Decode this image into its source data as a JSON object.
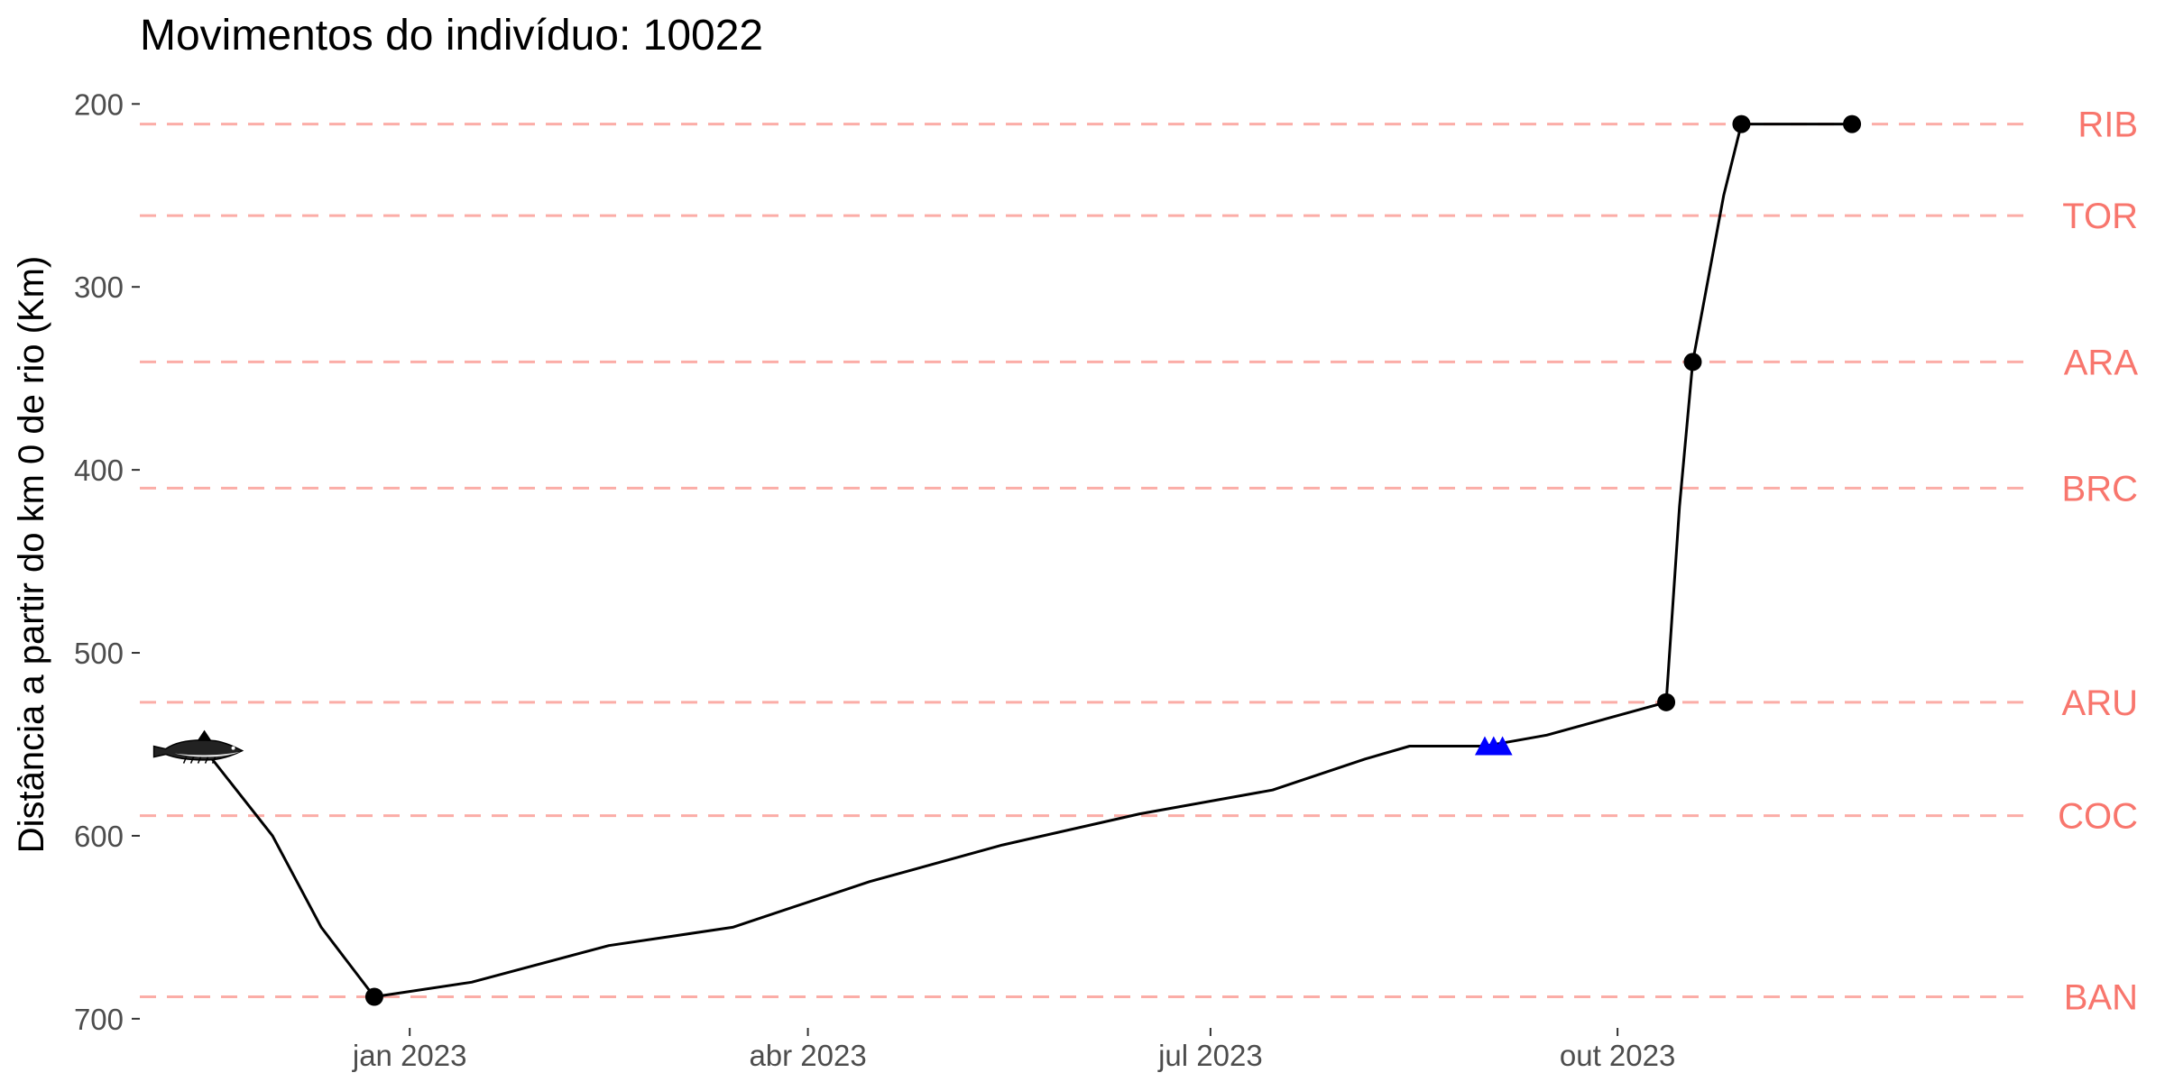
{
  "chart_data": {
    "type": "line",
    "title": "Movimentos do indivíduo: 10022",
    "xlabel": "",
    "ylabel": "Distância a partir do km 0 de rio (Km)",
    "x_axis": {
      "type": "date",
      "range": [
        "2022-11-01",
        "2023-12-25"
      ],
      "ticks": [
        {
          "date": "2023-01-01",
          "label": "jan 2023"
        },
        {
          "date": "2023-04-01",
          "label": "abr 2023"
        },
        {
          "date": "2023-07-01",
          "label": "jul 2023"
        },
        {
          "date": "2023-10-01",
          "label": "out 2023"
        }
      ]
    },
    "y_axis": {
      "reversed": true,
      "range": [
        190,
        705
      ],
      "ticks": [
        200,
        300,
        400,
        500,
        600,
        700
      ]
    },
    "grid": false,
    "reference_lines": {
      "color": "#F8766D",
      "style": "dashed",
      "items": [
        {
          "name": "RIB",
          "y": 211
        },
        {
          "name": "TOR",
          "y": 261
        },
        {
          "name": "ARA",
          "y": 341
        },
        {
          "name": "BRC",
          "y": 410
        },
        {
          "name": "ARU",
          "y": 527
        },
        {
          "name": "COC",
          "y": 589
        },
        {
          "name": "BAN",
          "y": 688
        }
      ]
    },
    "series": [
      {
        "type": "line",
        "color": "#000000",
        "points": [
          {
            "x": "2022-11-16",
            "y": 554
          },
          {
            "x": "2022-12-01",
            "y": 600
          },
          {
            "x": "2022-12-12",
            "y": 650
          },
          {
            "x": "2022-12-24",
            "y": 688
          },
          {
            "x": "2023-01-15",
            "y": 680
          },
          {
            "x": "2023-02-15",
            "y": 660
          },
          {
            "x": "2023-03-15",
            "y": 650
          },
          {
            "x": "2023-04-15",
            "y": 625
          },
          {
            "x": "2023-05-15",
            "y": 605
          },
          {
            "x": "2023-06-15",
            "y": 588
          },
          {
            "x": "2023-07-15",
            "y": 575
          },
          {
            "x": "2023-08-05",
            "y": 558
          },
          {
            "x": "2023-08-15",
            "y": 551
          },
          {
            "x": "2023-09-01",
            "y": 551
          },
          {
            "x": "2023-09-15",
            "y": 545
          },
          {
            "x": "2023-10-12",
            "y": 527
          },
          {
            "x": "2023-10-15",
            "y": 420
          },
          {
            "x": "2023-10-18",
            "y": 341
          },
          {
            "x": "2023-10-25",
            "y": 250
          },
          {
            "x": "2023-10-29",
            "y": 211
          },
          {
            "x": "2023-11-23",
            "y": 211
          }
        ]
      },
      {
        "type": "scatter",
        "name": "detections",
        "color": "#000000",
        "marker": "circle",
        "points": [
          {
            "x": "2022-12-24",
            "y": 688
          },
          {
            "x": "2023-10-12",
            "y": 527
          },
          {
            "x": "2023-10-18",
            "y": 341
          },
          {
            "x": "2023-10-29",
            "y": 211
          },
          {
            "x": "2023-11-23",
            "y": 211
          }
        ]
      },
      {
        "type": "scatter",
        "name": "triangles",
        "color": "#0000FF",
        "marker": "triangle",
        "points": [
          {
            "x": "2023-09-01",
            "y": 551
          },
          {
            "x": "2023-09-03",
            "y": 551
          },
          {
            "x": "2023-09-05",
            "y": 551
          }
        ]
      }
    ],
    "fish_icon": {
      "name": "fish-icon",
      "x": "2022-11-16",
      "y": 554
    }
  }
}
